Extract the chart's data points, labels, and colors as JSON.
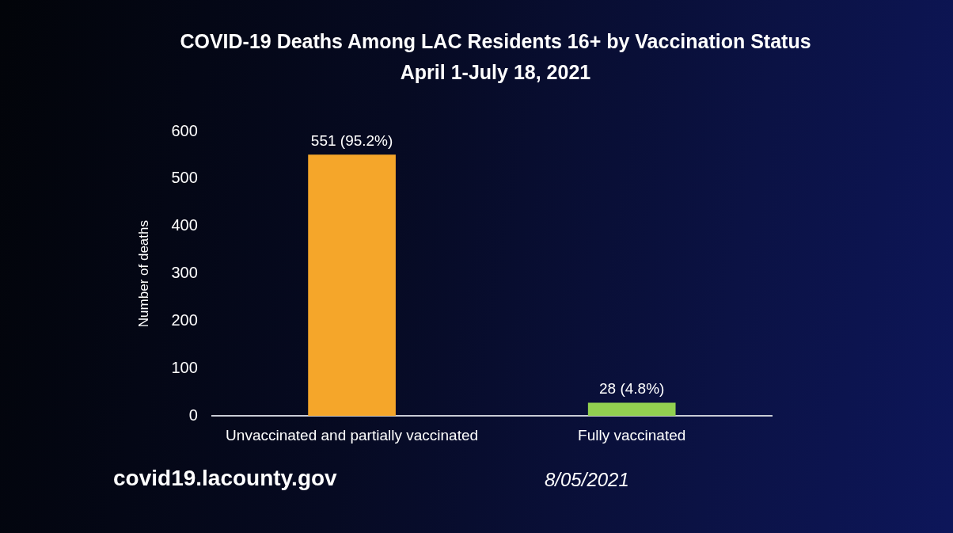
{
  "chart_data": {
    "type": "bar",
    "title": "COVID-19 Deaths Among LAC Residents 16+ by Vaccination Status",
    "subtitle": "April 1-July 18, 2021",
    "ylabel": "Number of deaths",
    "categories": [
      "Unvaccinated and partially vaccinated",
      "Fully vaccinated"
    ],
    "values": [
      551,
      28
    ],
    "colors": [
      "#f5a62a",
      "#92d050"
    ],
    "value_labels": [
      "551 (95.2%)",
      "28 (4.8%)"
    ],
    "ylim": [
      0,
      600
    ],
    "yticks": [
      0,
      100,
      200,
      300,
      400,
      500,
      600
    ],
    "grid": false,
    "legend": false,
    "annotations": [
      "covid19.lacounty.gov",
      "8/05/2021"
    ]
  }
}
